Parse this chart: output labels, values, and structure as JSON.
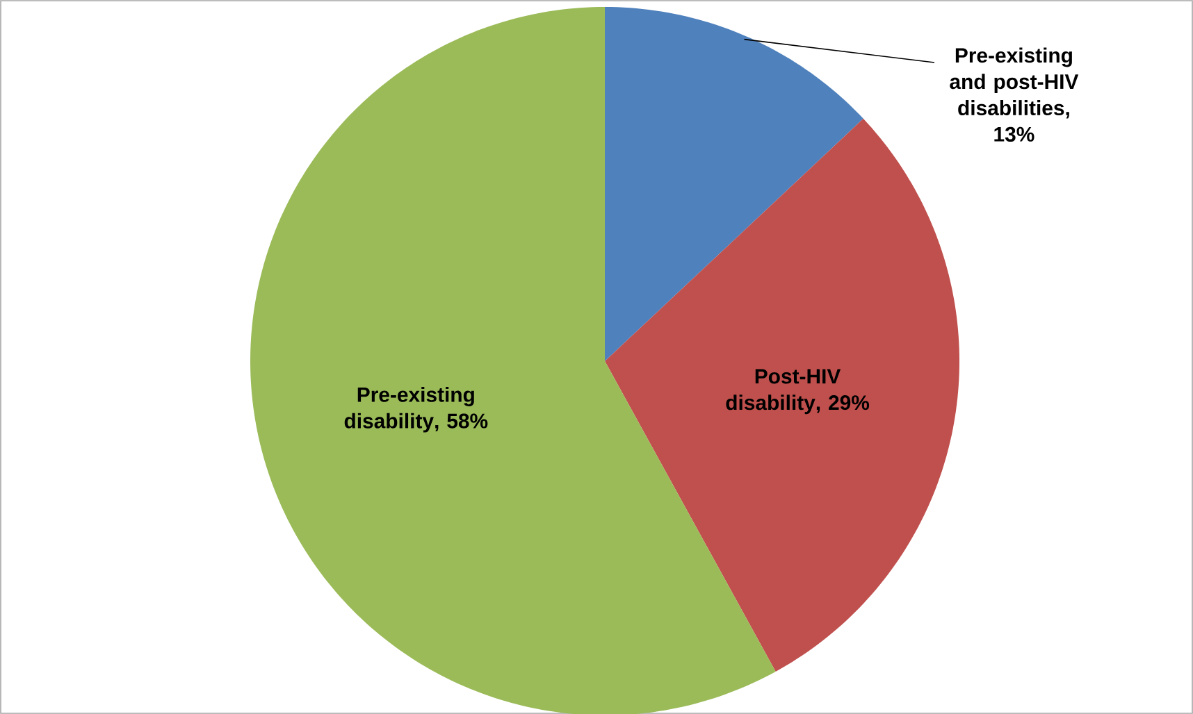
{
  "chart_data": {
    "type": "pie",
    "categories": [
      "Pre-existing and post-HIV disabilities",
      "Post-HIV disability",
      "Pre-existing disability"
    ],
    "values": [
      13,
      29,
      58
    ],
    "colors": [
      "#4f81bd",
      "#c0504d",
      "#9bbb59"
    ],
    "value_labels": [
      ", 13%",
      ", 29%",
      ", 58%"
    ]
  }
}
